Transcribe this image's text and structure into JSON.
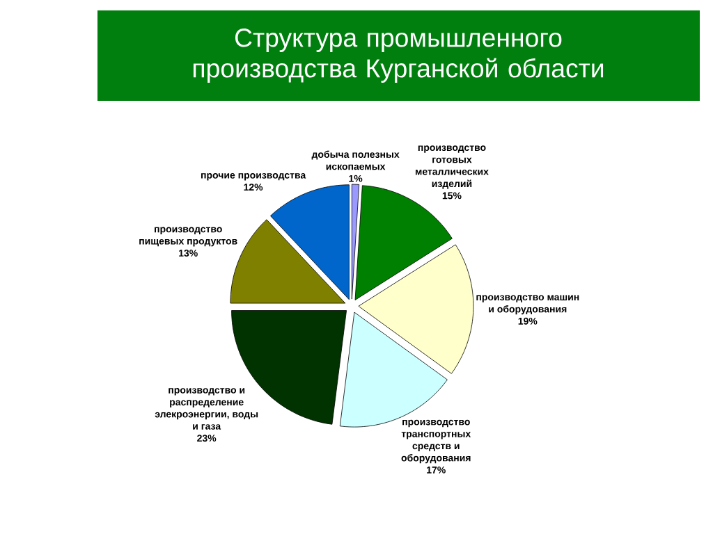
{
  "chart_data": {
    "type": "pie",
    "title": "Структура промышленного производства Курганской области",
    "categories": [
      "добыча полезных ископаемых",
      "производство готовых металлических изделий",
      "производство машин и оборудования",
      "производство транспортных средств и оборудования",
      "производство и распределение элекроэнергии, воды и газа",
      "производство пищевых продуктов",
      "прочие производства"
    ],
    "values": [
      1,
      15,
      19,
      17,
      23,
      13,
      12
    ],
    "colors": [
      "#9999ff",
      "#008000",
      "#ffffcc",
      "#ccffff",
      "#003300",
      "#808000",
      "#0066cc"
    ],
    "value_labels": [
      "1%",
      "15%",
      "19%",
      "17%",
      "23%",
      "13%",
      "12%"
    ]
  }
}
